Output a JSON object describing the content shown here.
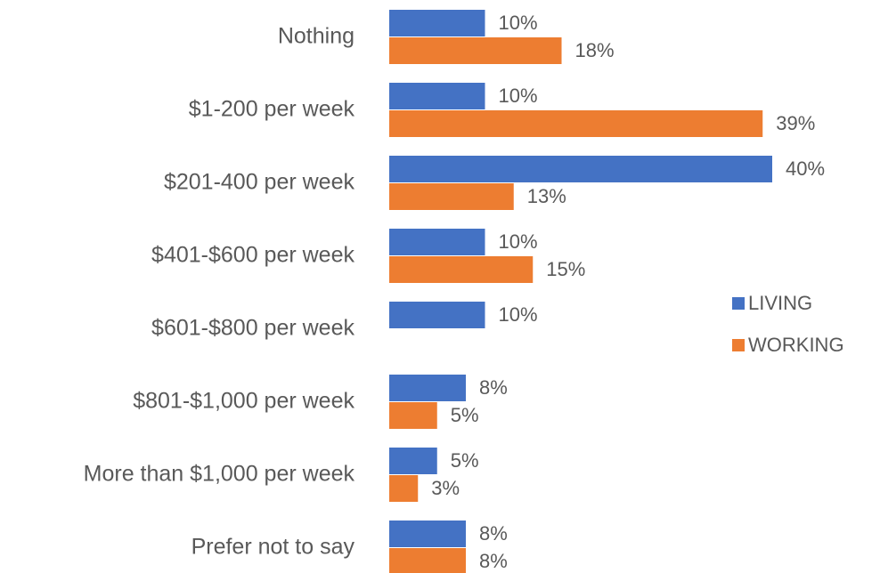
{
  "chart_data": {
    "type": "bar",
    "orientation": "horizontal",
    "categories": [
      "Nothing",
      "$1-200 per week",
      "$201-400 per week",
      "$401-$600 per week",
      "$601-$800 per week",
      "$801-$1,000 per week",
      "More than $1,000 per week",
      "Prefer not to say"
    ],
    "series": [
      {
        "name": "LIVING",
        "color": "#4472c4",
        "values": [
          10,
          10,
          40,
          10,
          10,
          8,
          5,
          8
        ],
        "value_labels": [
          "10%",
          "10%",
          "40%",
          "10%",
          "10%",
          "8%",
          "5%",
          "8%"
        ]
      },
      {
        "name": "WORKING",
        "color": "#ed7d31",
        "values": [
          18,
          39,
          13,
          15,
          null,
          5,
          3,
          8
        ],
        "value_labels": [
          "18%",
          "39%",
          "13%",
          "15%",
          null,
          "5%",
          "3%",
          "8%"
        ]
      }
    ],
    "legend": "right"
  }
}
